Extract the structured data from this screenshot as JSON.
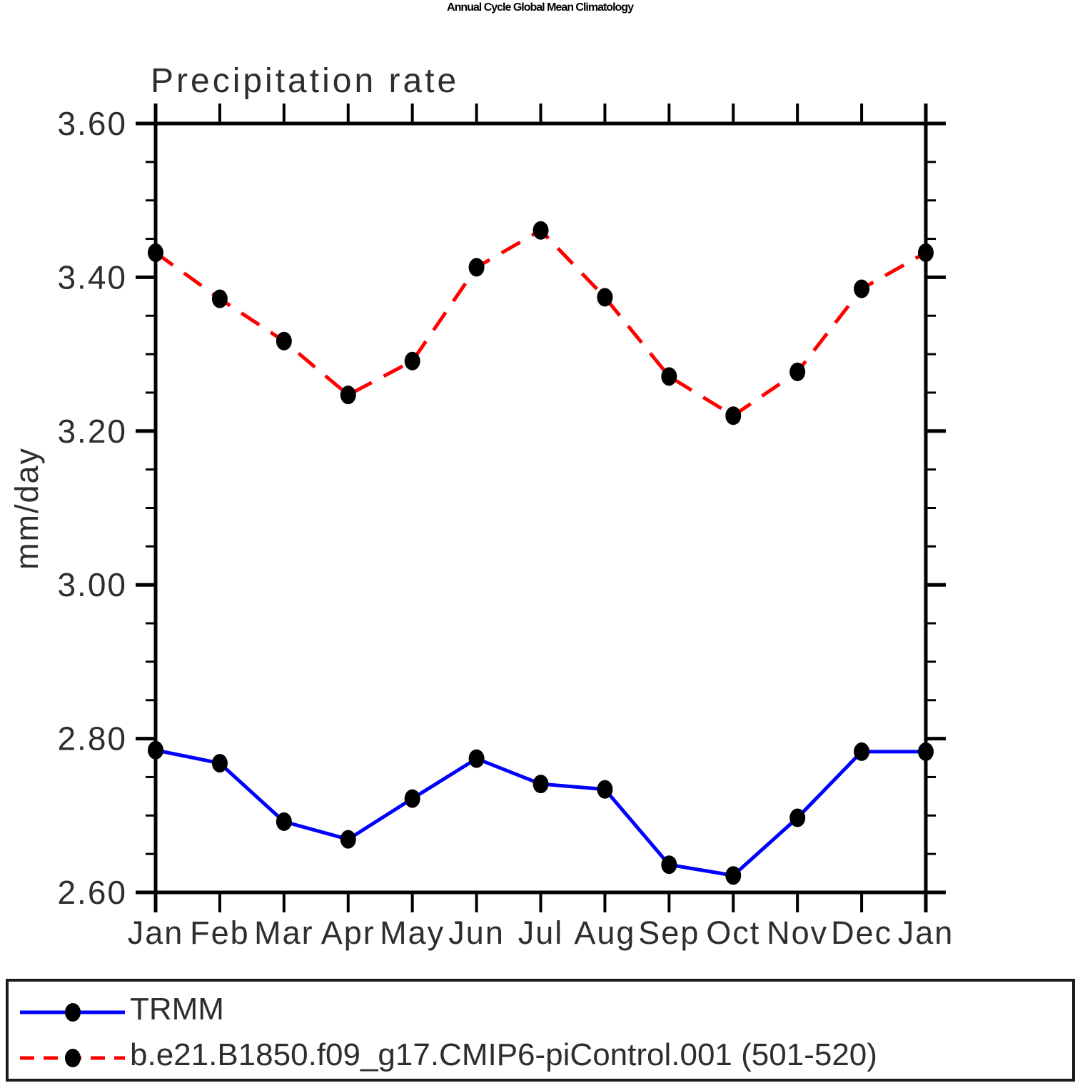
{
  "title": "Annual Cycle Global Mean Climatology",
  "subtitle": "Precipitation rate",
  "ylabel": "mm/day",
  "chart_data": {
    "type": "line",
    "x_categories": [
      "Jan",
      "Feb",
      "Mar",
      "Apr",
      "May",
      "Jun",
      "Jul",
      "Aug",
      "Sep",
      "Oct",
      "Nov",
      "Dec",
      "Jan"
    ],
    "ylim": [
      2.6,
      3.6
    ],
    "ytick_major_step": 0.2,
    "ytick_minor_step": 0.05,
    "ytick_labels": [
      "3.60",
      "3.40",
      "3.20",
      "3.00",
      "2.80",
      "2.60"
    ],
    "grid": false,
    "legend_position": "bottom-box",
    "axis_color": "#000000",
    "series": [
      {
        "name": "TRMM",
        "color": "#0000ff",
        "line_style": "solid",
        "marker": "filled-circle",
        "marker_color": "#000000",
        "values": [
          2.785,
          2.768,
          2.692,
          2.669,
          2.722,
          2.774,
          2.741,
          2.734,
          2.636,
          2.622,
          2.697,
          2.783,
          2.783
        ]
      },
      {
        "name": "b.e21.B1850.f09_g17.CMIP6-piControl.001 (501-520)",
        "color": "#ff0000",
        "line_style": "dashed",
        "marker": "filled-circle",
        "marker_color": "#000000",
        "values": [
          3.432,
          3.372,
          3.317,
          3.247,
          3.291,
          3.413,
          3.461,
          3.374,
          3.271,
          3.22,
          3.277,
          3.385,
          3.432
        ]
      }
    ]
  }
}
